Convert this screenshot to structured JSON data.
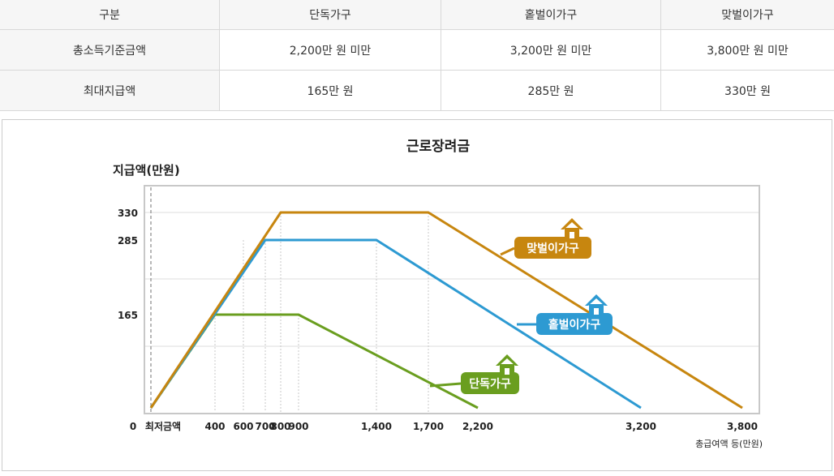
{
  "table": {
    "headers": [
      "구분",
      "단독가구",
      "홑벌이가구",
      "맞벌이가구"
    ],
    "rows": [
      [
        "총소득기준금액",
        "2,200만 원 미만",
        "3,200만 원 미만",
        "3,800만 원 미만"
      ],
      [
        "최대지급액",
        "165만 원",
        "285만 원",
        "330만 원"
      ]
    ]
  },
  "chart_data": {
    "type": "line",
    "title": "근로장려금",
    "ylabel": "지급액(만원)",
    "xlabel": "총급여액 등(만원)",
    "origin_label": "0",
    "min_wage_label": "최저금액",
    "x_ticks": [
      "400",
      "600",
      "700",
      "800",
      "900",
      "1,400",
      "1,700",
      "2,200",
      "3,200",
      "3,800"
    ],
    "y_ticks": [
      "165",
      "285",
      "330"
    ],
    "colors": {
      "single": "#6a9e1f",
      "single_earner": "#2d9ad2",
      "dual_earner": "#c7860f"
    },
    "series": [
      {
        "name": "단독가구",
        "x": [
          0,
          400,
          900,
          2200
        ],
        "y": [
          0,
          165,
          165,
          0
        ]
      },
      {
        "name": "홑벌이가구",
        "x": [
          0,
          700,
          1400,
          3200
        ],
        "y": [
          0,
          285,
          285,
          0
        ]
      },
      {
        "name": "맞벌이가구",
        "x": [
          0,
          800,
          1700,
          3800
        ],
        "y": [
          0,
          330,
          330,
          0
        ]
      }
    ],
    "grid": true,
    "icons": [
      "house-icon",
      "house-icon",
      "house-icon"
    ]
  }
}
